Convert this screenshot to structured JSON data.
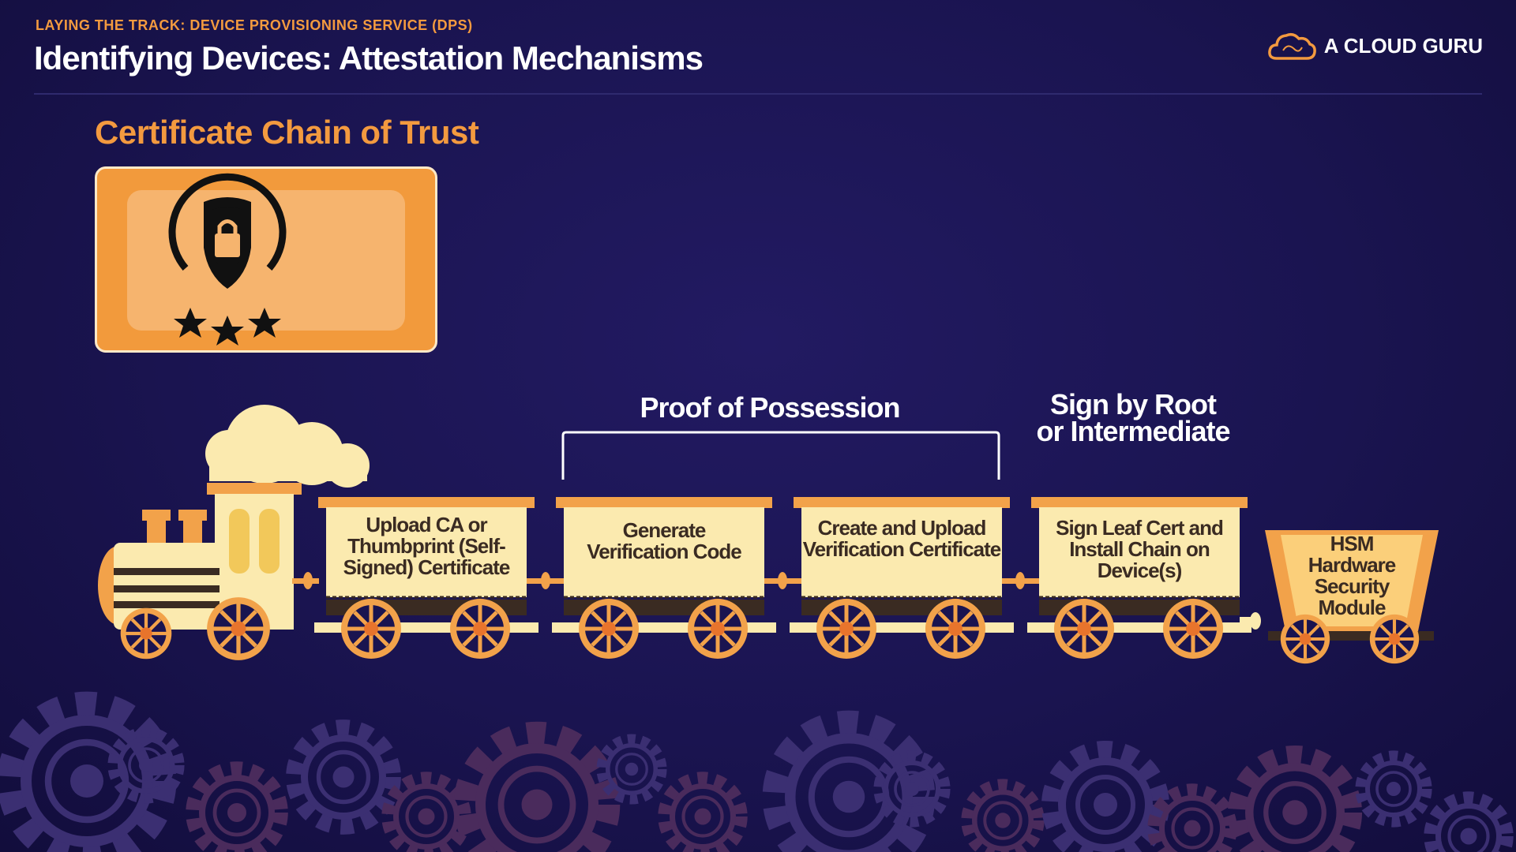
{
  "header": {
    "kicker": "LAYING THE TRACK: DEVICE PROVISIONING SERVICE (DPS)",
    "title": "Identifying Devices: Attestation Mechanisms",
    "brand": "A CLOUD GURU"
  },
  "section": {
    "subtitle": "Certificate Chain of Trust"
  },
  "labels": {
    "proof_of_possession": "Proof of Possession",
    "sign_by_root": "Sign by Root or Intermediate"
  },
  "train": {
    "cars": [
      {
        "text": "Upload CA or Thumbprint (Self-Signed) Certificate"
      },
      {
        "text": "Generate Verification Code"
      },
      {
        "text": "Create and Upload Verification Certificate"
      },
      {
        "text": "Sign Leaf Cert and Install Chain on Device(s)"
      }
    ],
    "cart": {
      "text": "HSM Hardware Security Module"
    }
  },
  "colors": {
    "accent": "#f39a3f",
    "background": "#1a1450",
    "car_body": "#fbeaaf",
    "car_dark": "#3a2b22"
  }
}
